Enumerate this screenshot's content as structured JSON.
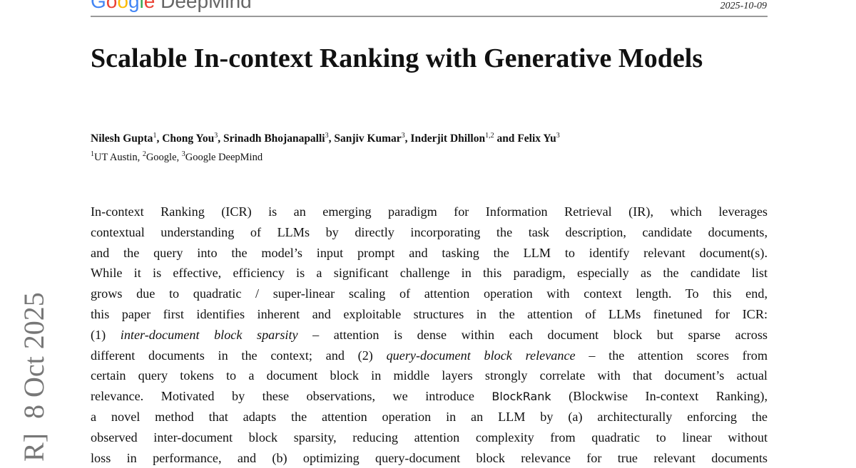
{
  "header": {
    "logo_text": "Google DeepMind",
    "date": "2025-10-09"
  },
  "watermark": "R]  8 Oct 2025",
  "paper": {
    "title": "Scalable In-context Ranking with Generative Models",
    "authors": [
      {
        "name": "Nilesh Gupta",
        "aff": "1"
      },
      {
        "name": "Chong You",
        "aff": "3"
      },
      {
        "name": "Srinadh Bhojanapalli",
        "aff": "3"
      },
      {
        "name": "Sanjiv Kumar",
        "aff": "3"
      },
      {
        "name": "Inderjit Dhillon",
        "aff": "1,2"
      },
      {
        "name": "Felix Yu",
        "aff": "3"
      }
    ],
    "author_sep": ", ",
    "author_last_sep": " and ",
    "affiliations": [
      {
        "num": "1",
        "name": "UT Austin"
      },
      {
        "num": "2",
        "name": "Google"
      },
      {
        "num": "3",
        "name": "Google DeepMind"
      }
    ],
    "abstract_lines": [
      [
        {
          "t": "In-context Ranking (ICR) is an emerging paradigm for Information Retrieval (IR), which leverages"
        }
      ],
      [
        {
          "t": "contextual understanding of LLMs by directly incorporating the task description, candidate documents,"
        }
      ],
      [
        {
          "t": "and the query into the model’s input prompt and tasking the LLM to identify relevant document(s)."
        }
      ],
      [
        {
          "t": "While it is effective, efficiency is a significant challenge in this paradigm, especially as the candidate list"
        }
      ],
      [
        {
          "t": "grows due to quadratic / super-linear scaling of attention operation with context length. To this end,"
        }
      ],
      [
        {
          "t": "this paper first identifies inherent and exploitable structures in the attention of LLMs finetuned for ICR:"
        }
      ],
      [
        {
          "t": "(1) "
        },
        {
          "t": "inter-document block sparsity",
          "s": "it"
        },
        {
          "t": " – attention is dense within each document block but sparse across"
        }
      ],
      [
        {
          "t": "different documents in the context; and (2) "
        },
        {
          "t": "query-document block relevance",
          "s": "it"
        },
        {
          "t": " – the attention scores from"
        }
      ],
      [
        {
          "t": "certain query tokens to a document block in middle layers strongly correlate with that document’s actual"
        }
      ],
      [
        {
          "t": "relevance. Motivated by these observations, we introduce "
        },
        {
          "t": "BlockRank",
          "s": "sf"
        },
        {
          "t": " (Blockwise In-context Ranking),"
        }
      ],
      [
        {
          "t": "a novel method that adapts the attention operation in an LLM by (a) architecturally enforcing the"
        }
      ],
      [
        {
          "t": "observed inter-document block sparsity, reducing attention complexity from quadratic to linear without"
        }
      ],
      [
        {
          "t": "loss in performance, and (b) optimizing query-document block relevance for true relevant documents"
        }
      ]
    ]
  }
}
